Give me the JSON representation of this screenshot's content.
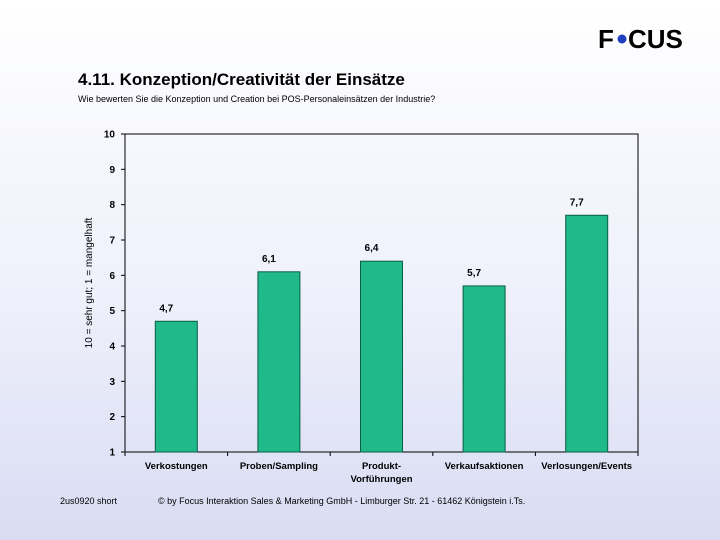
{
  "header": {
    "logo_text": "FOCUS",
    "title": "4.11. Konzeption/Creativität der Einsätze",
    "subtitle": "Wie bewerten Sie die Konzeption und Creation bei POS-Personaleinsätzen der Industrie?"
  },
  "colors": {
    "bar_fill": "#1fb98a",
    "bar_stroke": "#0a5e45",
    "logo_dot": "#1f3fbf",
    "logo_text": "#000000"
  },
  "chart_data": {
    "type": "bar",
    "title": "",
    "xlabel": "",
    "ylabel": "10 = sehr gut; 1 = mangelhaft",
    "ylim": [
      1,
      10
    ],
    "yticks": [
      "1",
      "2",
      "3",
      "4",
      "5",
      "6",
      "7",
      "8",
      "9",
      "10"
    ],
    "grid": false,
    "legend": "none",
    "categories": [
      [
        "Verkostungen"
      ],
      [
        "Proben/Sampling"
      ],
      [
        "Produkt-",
        "Vorführungen"
      ],
      [
        "Verkaufsaktionen"
      ],
      [
        "Verlosungen/Events"
      ]
    ],
    "values": [
      4.7,
      6.1,
      6.4,
      5.7,
      7.7
    ],
    "data_labels": [
      "4,7",
      "6,1",
      "6,4",
      "5,7",
      "7,7"
    ]
  },
  "footer": {
    "left": "2us0920 short",
    "right": "© by Focus Interaktion Sales & Marketing GmbH - Limburger Str. 21 - 61462 Königstein i.Ts."
  }
}
